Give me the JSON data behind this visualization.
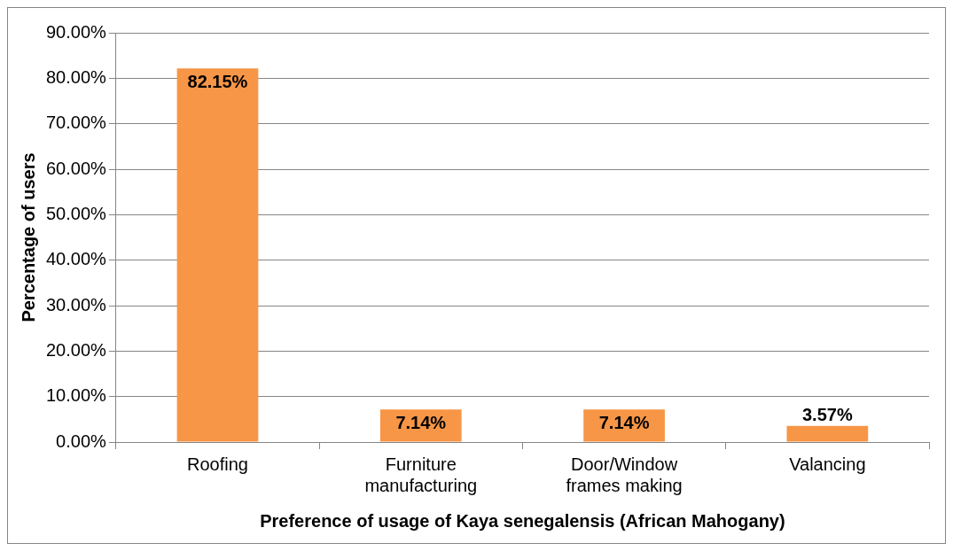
{
  "chart_data": {
    "type": "bar",
    "xlabel": "Preference of usage of Kaya senegalensis (African Mahogany)",
    "ylabel": "Percentage of users",
    "categories": [
      "Roofing",
      "Furniture manufacturing",
      "Door/Window frames making",
      "Valancing"
    ],
    "values": [
      82.15,
      7.14,
      7.14,
      3.57
    ],
    "color": "#f79646",
    "value_labels": [
      "82.15%",
      "7.14%",
      "7.14%",
      "3.57%"
    ],
    "ylim": [
      0,
      90
    ],
    "yticks": [
      {
        "value": 0,
        "label": "0.00%"
      },
      {
        "value": 10,
        "label": "10.00%"
      },
      {
        "value": 20,
        "label": "20.00%"
      },
      {
        "value": 30,
        "label": "30.00%"
      },
      {
        "value": 40,
        "label": "40.00%"
      },
      {
        "value": 50,
        "label": "50.00%"
      },
      {
        "value": 60,
        "label": "60.00%"
      },
      {
        "value": 70,
        "label": "70.00%"
      },
      {
        "value": 80,
        "label": "80.00%"
      },
      {
        "value": 90,
        "label": "90.00%"
      }
    ],
    "grid": "y",
    "legend": false
  }
}
